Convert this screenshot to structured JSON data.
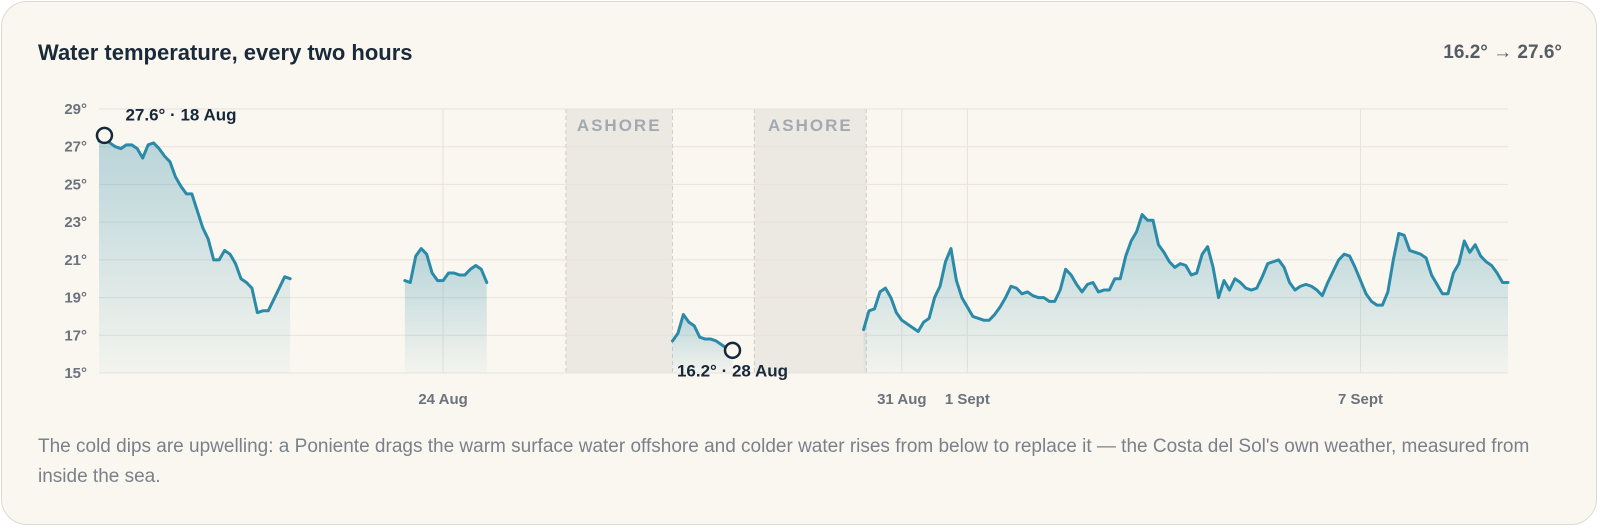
{
  "chart_data": {
    "type": "line",
    "title": "Water temperature, every two hours",
    "subtitle": "16.2° → 27.6°",
    "caption": "The cold dips are upwelling: a Poniente drags the warm surface water offshore and colder water rises from below to replace it — the Costa del Sol's own weather, measured from inside the sea.",
    "color": "#2a8aa8",
    "grid": true,
    "xlim": [
      0,
      258
    ],
    "xticks": [
      {
        "value": 63,
        "label": "24 Aug"
      },
      {
        "value": 147,
        "label": "31 Aug"
      },
      {
        "value": 159,
        "label": "1 Sept"
      },
      {
        "value": 231,
        "label": "7 Sept"
      }
    ],
    "ylim": [
      15,
      29
    ],
    "yticks": [
      {
        "value": 15,
        "label": "15°"
      },
      {
        "value": 17,
        "label": "17°"
      },
      {
        "value": 19,
        "label": "19°"
      },
      {
        "value": 21,
        "label": "21°"
      },
      {
        "value": 23,
        "label": "23°"
      },
      {
        "value": 25,
        "label": "25°"
      },
      {
        "value": 27,
        "label": "27°"
      },
      {
        "value": 29,
        "label": "29°"
      }
    ],
    "shaded_regions": [
      {
        "label": "ASHORE",
        "start": 85.5,
        "end": 105
      },
      {
        "label": "ASHORE",
        "start": 120,
        "end": 140.5
      }
    ],
    "annotations": [
      {
        "text": "27.6° · 18 Aug",
        "x": 1,
        "y": 27.6
      },
      {
        "text": "16.2° · 28 Aug",
        "x": 116,
        "y": 16.2
      }
    ],
    "values": [
      27.3,
      27.6,
      27.2,
      27.0,
      26.9,
      27.1,
      27.1,
      26.9,
      26.4,
      27.1,
      27.2,
      26.9,
      26.5,
      26.2,
      25.4,
      24.9,
      24.5,
      24.5,
      23.6,
      22.7,
      22.1,
      21.0,
      21.0,
      21.5,
      21.3,
      20.8,
      20.0,
      19.8,
      19.5,
      18.2,
      18.3,
      18.3,
      18.9,
      19.5,
      20.1,
      20.0,
      null,
      null,
      null,
      null,
      null,
      null,
      null,
      null,
      null,
      null,
      null,
      null,
      null,
      null,
      null,
      null,
      null,
      null,
      null,
      null,
      19.9,
      19.8,
      21.2,
      21.6,
      21.3,
      20.3,
      19.9,
      19.9,
      20.3,
      20.3,
      20.2,
      20.2,
      20.5,
      20.7,
      20.5,
      19.8,
      null,
      null,
      null,
      null,
      null,
      null,
      null,
      null,
      null,
      null,
      null,
      null,
      null,
      null,
      null,
      null,
      null,
      null,
      null,
      null,
      null,
      null,
      null,
      null,
      null,
      null,
      null,
      null,
      null,
      null,
      null,
      null,
      null,
      16.7,
      17.1,
      18.1,
      17.7,
      17.5,
      16.9,
      16.8,
      16.8,
      16.7,
      16.5,
      16.3,
      16.2,
      null,
      null,
      null,
      null,
      null,
      null,
      null,
      null,
      null,
      null,
      null,
      null,
      null,
      null,
      null,
      null,
      null,
      null,
      null,
      null,
      null,
      null,
      null,
      17.3,
      18.3,
      18.4,
      19.3,
      19.5,
      19.0,
      18.2,
      17.8,
      17.6,
      17.4,
      17.2,
      17.7,
      17.9,
      19.0,
      19.6,
      20.9,
      21.6,
      19.9,
      19.0,
      18.5,
      18.0,
      17.9,
      17.8,
      17.8,
      18.1,
      18.5,
      19.0,
      19.6,
      19.5,
      19.2,
      19.3,
      19.1,
      19.0,
      19.0,
      18.8,
      18.8,
      19.4,
      20.5,
      20.2,
      19.7,
      19.3,
      19.7,
      19.8,
      19.3,
      19.4,
      19.4,
      20.0,
      20.0,
      21.2,
      22.0,
      22.5,
      23.4,
      23.1,
      23.1,
      21.8,
      21.4,
      20.9,
      20.6,
      20.8,
      20.7,
      20.2,
      20.3,
      21.3,
      21.7,
      20.6,
      19.0,
      19.9,
      19.4,
      20.0,
      19.8,
      19.5,
      19.4,
      19.5,
      20.1,
      20.8,
      20.9,
      21.0,
      20.6,
      19.8,
      19.4,
      19.6,
      19.7,
      19.6,
      19.4,
      19.1,
      19.8,
      20.4,
      21.0,
      21.3,
      21.2,
      20.6,
      19.9,
      19.2,
      18.8,
      18.6,
      18.6,
      19.3,
      21.0,
      22.4,
      22.3,
      21.5,
      21.4,
      21.3,
      21.1,
      20.2,
      19.7,
      19.2,
      19.2,
      20.3,
      20.8,
      22.0,
      21.4,
      21.8,
      21.2,
      20.9,
      20.7,
      20.3,
      19.8,
      19.8
    ]
  }
}
